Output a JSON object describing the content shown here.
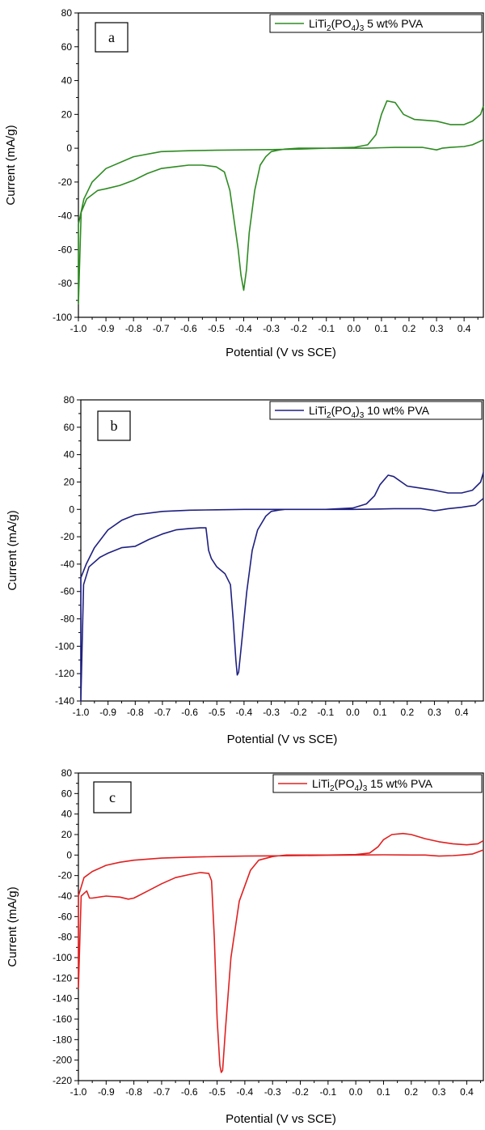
{
  "chart_data": [
    {
      "type": "line",
      "panel_label": "a",
      "xlabel": "Potential (V vs SCE)",
      "ylabel": "Current (mA/g)",
      "xlim": [
        -1.0,
        0.47
      ],
      "ylim": [
        -100,
        80
      ],
      "xticks": [
        -1.0,
        -0.9,
        -0.8,
        -0.7,
        -0.6,
        -0.5,
        -0.4,
        -0.3,
        -0.2,
        -0.1,
        0.0,
        0.1,
        0.2,
        0.3,
        0.4
      ],
      "yticks": [
        -100,
        -80,
        -60,
        -40,
        -20,
        0,
        20,
        40,
        60,
        80
      ],
      "legend_position": "top-right",
      "series": [
        {
          "legend": {
            "base": "LiTi",
            "sub1": "2",
            "mid": "(PO",
            "sub2": "4",
            "close": ")",
            "sub3": "3",
            "suffix": " 5 wt% PVA"
          },
          "color": "#2e8b22",
          "x": [
            0.47,
            0.43,
            0.4,
            0.35,
            0.32,
            0.3,
            0.25,
            0.2,
            0.15,
            0.1,
            0.05,
            0.0,
            -0.1,
            -0.2,
            -0.3,
            -0.4,
            -0.5,
            -0.6,
            -0.7,
            -0.8,
            -0.9,
            -0.95,
            -0.98,
            -1.0,
            -1.0,
            -0.99,
            -0.97,
            -0.93,
            -0.9,
            -0.85,
            -0.8,
            -0.75,
            -0.7,
            -0.65,
            -0.6,
            -0.55,
            -0.5,
            -0.47,
            -0.45,
            -0.42,
            -0.41,
            -0.4,
            -0.39,
            -0.38,
            -0.36,
            -0.34,
            -0.32,
            -0.3,
            -0.27,
            -0.25,
            -0.2,
            -0.1,
            0.0,
            0.05,
            0.08,
            0.1,
            0.12,
            0.15,
            0.18,
            0.22,
            0.3,
            0.35,
            0.4,
            0.43,
            0.46,
            0.47
          ],
          "y": [
            5,
            2,
            1,
            0.5,
            0,
            -1,
            0.5,
            0.5,
            0.5,
            0.3,
            0,
            0,
            0,
            -0.5,
            -0.8,
            -1,
            -1.2,
            -1.5,
            -2,
            -5,
            -12,
            -20,
            -30,
            -45,
            -92,
            -38,
            -30,
            -25,
            -24,
            -22,
            -19,
            -15,
            -12,
            -11,
            -10,
            -10,
            -11,
            -14,
            -25,
            -60,
            -75,
            -84,
            -72,
            -50,
            -25,
            -10,
            -5,
            -2,
            -1,
            -0.5,
            0,
            0,
            0.5,
            2,
            8,
            20,
            28,
            27,
            20,
            17,
            16,
            14,
            14,
            16,
            20,
            25
          ]
        }
      ]
    },
    {
      "type": "line",
      "panel_label": "b",
      "xlabel": "Potential (V vs SCE)",
      "ylabel": "Current (mA/g)",
      "xlim": [
        -1.0,
        0.48
      ],
      "ylim": [
        -140,
        80
      ],
      "xticks": [
        -1.0,
        -0.9,
        -0.8,
        -0.7,
        -0.6,
        -0.5,
        -0.4,
        -0.3,
        -0.2,
        -0.1,
        0.0,
        0.1,
        0.2,
        0.3,
        0.4
      ],
      "yticks": [
        -140,
        -120,
        -100,
        -80,
        -60,
        -40,
        -20,
        0,
        20,
        40,
        60,
        80
      ],
      "legend_position": "top-right",
      "series": [
        {
          "legend": {
            "base": "LiTi",
            "sub1": "2",
            "mid": "(PO",
            "sub2": "4",
            "close": ")",
            "sub3": "3",
            "suffix": " 10 wt% PVA"
          },
          "color": "#1f2080",
          "x": [
            0.48,
            0.45,
            0.4,
            0.35,
            0.32,
            0.3,
            0.25,
            0.2,
            0.15,
            0.1,
            0.0,
            -0.1,
            -0.2,
            -0.3,
            -0.4,
            -0.5,
            -0.6,
            -0.7,
            -0.8,
            -0.85,
            -0.9,
            -0.95,
            -0.98,
            -1.0,
            -1.0,
            -0.99,
            -0.97,
            -0.93,
            -0.9,
            -0.85,
            -0.8,
            -0.75,
            -0.7,
            -0.65,
            -0.6,
            -0.56,
            -0.54,
            -0.53,
            -0.52,
            -0.5,
            -0.47,
            -0.45,
            -0.44,
            -0.43,
            -0.425,
            -0.42,
            -0.41,
            -0.39,
            -0.37,
            -0.35,
            -0.32,
            -0.3,
            -0.27,
            -0.25,
            -0.2,
            -0.1,
            0.0,
            0.05,
            0.08,
            0.1,
            0.13,
            0.15,
            0.2,
            0.3,
            0.35,
            0.4,
            0.44,
            0.47,
            0.48
          ],
          "y": [
            8,
            3,
            1.5,
            0.5,
            -0.5,
            -1,
            0.5,
            0.5,
            0.5,
            0.3,
            0,
            0,
            0,
            0,
            0,
            -0.3,
            -0.6,
            -1.5,
            -4,
            -8,
            -15,
            -28,
            -40,
            -50,
            -140,
            -55,
            -42,
            -35,
            -32,
            -28,
            -27,
            -22,
            -18,
            -15,
            -14,
            -13.5,
            -13.5,
            -30,
            -36,
            -42,
            -47,
            -55,
            -80,
            -110,
            -121,
            -119,
            -100,
            -60,
            -30,
            -15,
            -5,
            -1.5,
            -0.5,
            0,
            0,
            0,
            1,
            4,
            10,
            18,
            25,
            24,
            17,
            14,
            12,
            12,
            14,
            20,
            27
          ]
        }
      ]
    },
    {
      "type": "line",
      "panel_label": "c",
      "xlabel": "Potential (V vs SCE)",
      "ylabel": "Current (mA/g)",
      "xlim": [
        -1.0,
        0.46
      ],
      "ylim": [
        -220,
        80
      ],
      "xticks": [
        -1.0,
        -0.9,
        -0.8,
        -0.7,
        -0.6,
        -0.5,
        -0.4,
        -0.3,
        -0.2,
        -0.1,
        0.0,
        0.1,
        0.2,
        0.3,
        0.4
      ],
      "yticks": [
        -220,
        -200,
        -180,
        -160,
        -140,
        -120,
        -100,
        -80,
        -60,
        -40,
        -20,
        0,
        20,
        40,
        60,
        80
      ],
      "legend_position": "top-right",
      "series": [
        {
          "legend": {
            "base": "LiTi",
            "sub1": "2",
            "mid": "(PO",
            "sub2": "4",
            "close": ")",
            "sub3": "3",
            "suffix": " 15 wt% PVA"
          },
          "color": "#e02020",
          "x": [
            0.46,
            0.42,
            0.38,
            0.35,
            0.3,
            0.25,
            0.2,
            0.1,
            0.0,
            -0.1,
            -0.2,
            -0.3,
            -0.4,
            -0.5,
            -0.6,
            -0.7,
            -0.8,
            -0.85,
            -0.9,
            -0.95,
            -0.98,
            -1.0,
            -1.0,
            -0.99,
            -0.97,
            -0.96,
            -0.95,
            -0.9,
            -0.85,
            -0.82,
            -0.8,
            -0.75,
            -0.7,
            -0.65,
            -0.6,
            -0.56,
            -0.53,
            -0.52,
            -0.51,
            -0.5,
            -0.49,
            -0.485,
            -0.48,
            -0.47,
            -0.45,
            -0.42,
            -0.38,
            -0.35,
            -0.3,
            -0.27,
            -0.25,
            -0.2,
            -0.1,
            0.0,
            0.05,
            0.08,
            0.1,
            0.13,
            0.17,
            0.2,
            0.25,
            0.3,
            0.35,
            0.4,
            0.44,
            0.46
          ],
          "y": [
            5,
            1,
            0,
            -0.5,
            -1,
            0,
            0,
            0.3,
            0,
            -0.2,
            -0.5,
            -0.8,
            -1,
            -1.5,
            -2,
            -3,
            -5,
            -7,
            -10,
            -16,
            -22,
            -40,
            -130,
            -40,
            -35,
            -42,
            -42,
            -40,
            -41,
            -43,
            -42,
            -35,
            -28,
            -22,
            -19,
            -17,
            -18,
            -25,
            -80,
            -160,
            -205,
            -212,
            -210,
            -170,
            -100,
            -45,
            -15,
            -5,
            -1.5,
            -0.5,
            0,
            0,
            0,
            0.5,
            2,
            8,
            15,
            20,
            21,
            20,
            16,
            13,
            11,
            10,
            11,
            14
          ]
        }
      ]
    }
  ]
}
